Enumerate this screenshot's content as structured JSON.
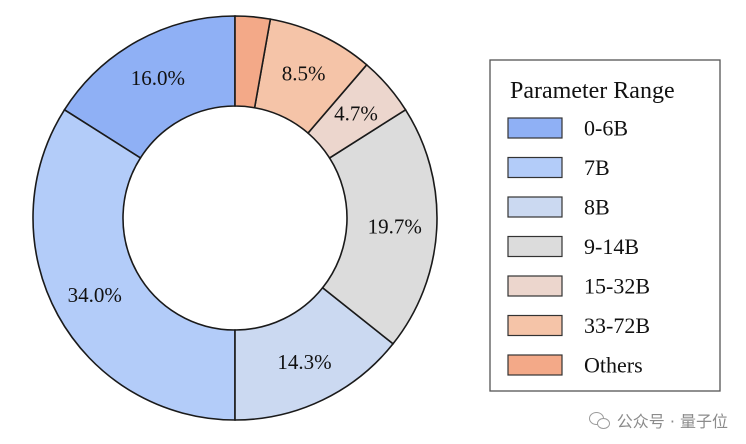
{
  "chart_data": {
    "type": "pie",
    "donut": true,
    "categories": [
      "0-6B",
      "7B",
      "8B",
      "9-14B",
      "15-32B",
      "33-72B",
      "Others"
    ],
    "values": [
      16.0,
      34.0,
      14.3,
      19.7,
      4.7,
      8.5,
      2.8
    ],
    "slice_labels": [
      "16.0%",
      "34.0%",
      "14.3%",
      "19.7%",
      "4.7%",
      "8.5%",
      ""
    ],
    "colors": [
      "#8fb0f5",
      "#b3ccf9",
      "#cbd9f1",
      "#dcdcdc",
      "#ecd6cd",
      "#f5c4a8",
      "#f3a988"
    ],
    "legend": {
      "title": "Parameter Range",
      "placement": "right"
    }
  },
  "watermark": {
    "text": "公众号 · 量子位",
    "icon": "wechat-icon"
  }
}
